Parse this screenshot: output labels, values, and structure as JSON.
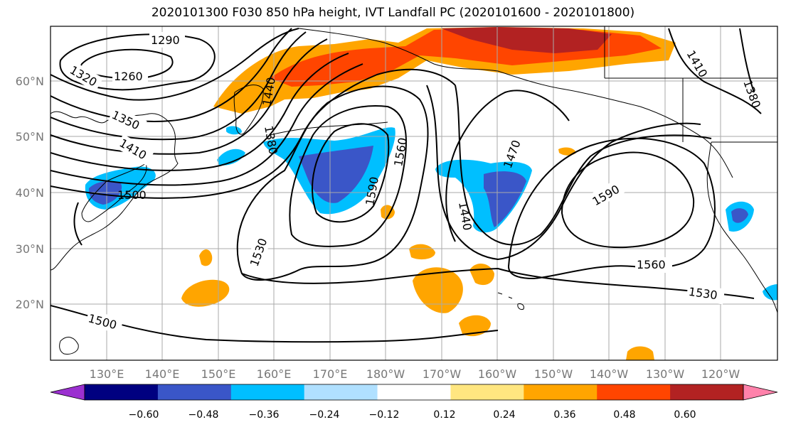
{
  "title": "2020101300 F030 850 hPa height, IVT Landfall PC (2020101600 - 2020101800)",
  "map": {
    "lat_ticks": [
      "60°N",
      "50°N",
      "40°N",
      "30°N",
      "20°N"
    ],
    "lon_ticks": [
      "130°E",
      "140°E",
      "150°E",
      "160°E",
      "170°E",
      "180°W",
      "170°W",
      "160°W",
      "150°W",
      "140°W",
      "130°W",
      "120°W"
    ],
    "contour_labels": [
      "1290",
      "1260",
      "1320",
      "1350",
      "1410",
      "1500",
      "1590",
      "1560",
      "1530",
      "1500",
      "1440",
      "1380",
      "1470",
      "1590",
      "1560",
      "1530",
      "1440",
      "1410",
      "1380"
    ]
  },
  "colorbar": {
    "ticks": [
      "−0.60",
      "−0.48",
      "−0.36",
      "−0.24",
      "−0.12",
      "0.12",
      "0.24",
      "0.36",
      "0.48",
      "0.60"
    ],
    "colors": [
      "#9b30d0",
      "#000080",
      "#3a56c8",
      "#00bfff",
      "#b0e0ff",
      "#ffffff",
      "#ffe680",
      "#ffa500",
      "#ff4500",
      "#b22222",
      "#ff82ab"
    ]
  }
}
